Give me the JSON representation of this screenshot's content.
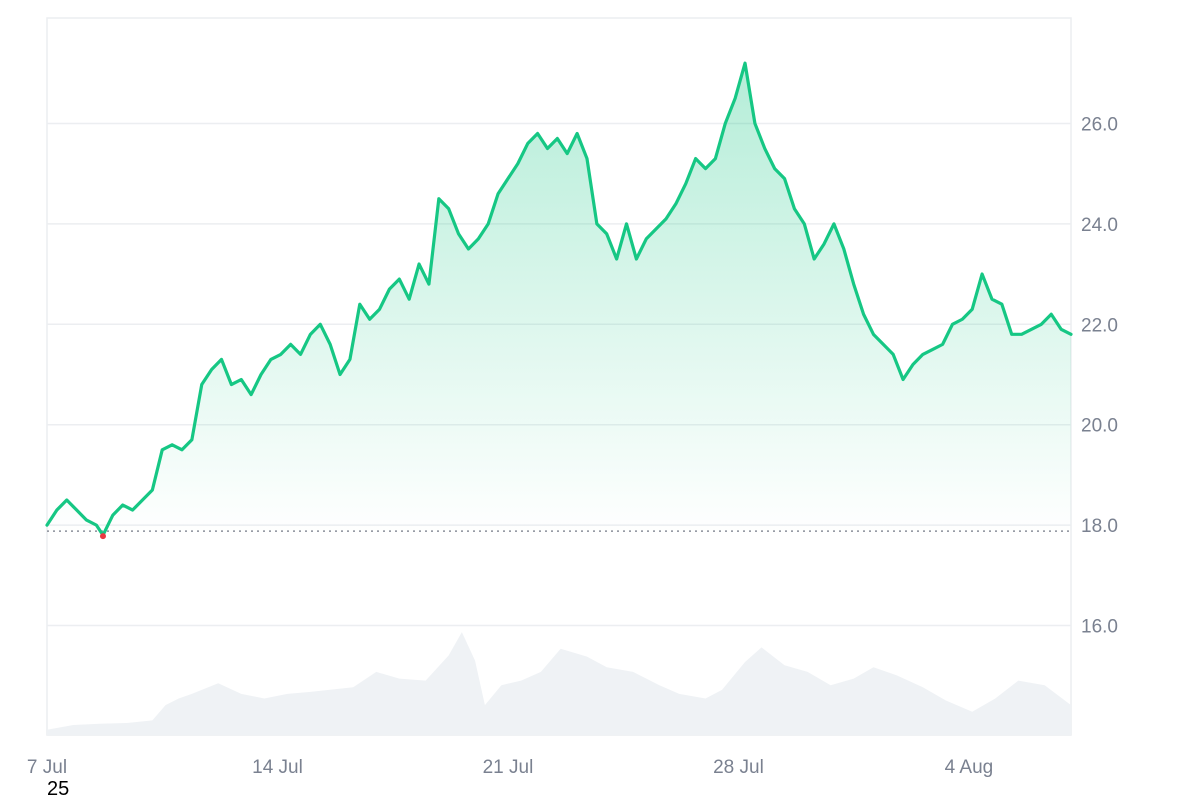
{
  "chart_data": {
    "type": "area",
    "title": "",
    "xlabel": "",
    "ylabel": "",
    "x_ticks": [
      "7 Jul",
      "14 Jul",
      "21 Jul",
      "28 Jul",
      "4 Aug"
    ],
    "x_tick_days": [
      0,
      7,
      14,
      21,
      28
    ],
    "x_range_days": [
      0,
      31.1
    ],
    "year_label": "25",
    "y_ticks": [
      "16.0",
      "18.0",
      "20.0",
      "22.0",
      "24.0",
      "26.0"
    ],
    "y_tick_values": [
      16,
      18,
      20,
      22,
      24,
      26
    ],
    "ylim": [
      13.82,
      28.1
    ],
    "baseline": 17.88,
    "grid": true,
    "legend": "none",
    "colors": {
      "up": "#16c784",
      "down": "#ea3943",
      "volume": "#eff2f5",
      "grid": "#eceef1",
      "axis_text": "#7a8190"
    },
    "series": [
      {
        "days": [
          0,
          0.3,
          0.6,
          0.9,
          1.2,
          1.5,
          1.7,
          2.0,
          2.3,
          2.6,
          2.9,
          3.2,
          3.5,
          3.8,
          4.1,
          4.4,
          4.7,
          5.0,
          5.3,
          5.6,
          5.9,
          6.2,
          6.5,
          6.8,
          7.1,
          7.4,
          7.7,
          8.0,
          8.3,
          8.6,
          8.9,
          9.2,
          9.5,
          9.8,
          10.1,
          10.4,
          10.7,
          11.0,
          11.3,
          11.6,
          11.9,
          12.2,
          12.5,
          12.8,
          13.1,
          13.4,
          13.7,
          14.0,
          14.3,
          14.6,
          14.9,
          15.2,
          15.5,
          15.8,
          16.1,
          16.4,
          16.7,
          17.0,
          17.3,
          17.6,
          17.9,
          18.2,
          18.5,
          18.8,
          19.1,
          19.4,
          19.7,
          20.0,
          20.3,
          20.6,
          20.9,
          21.2,
          21.5,
          21.8,
          22.1,
          22.4,
          22.7,
          23.0,
          23.3,
          23.6,
          23.9,
          24.2,
          24.5,
          24.8,
          25.1,
          25.4,
          25.7,
          26.0,
          26.3,
          26.6,
          26.9,
          27.2,
          27.5,
          27.8,
          28.1,
          28.4,
          28.7,
          29.0,
          29.3,
          29.6,
          29.9,
          30.2,
          30.5,
          30.8,
          31.1
        ],
        "values": [
          18.0,
          18.3,
          18.5,
          18.3,
          18.1,
          18.0,
          17.8,
          18.2,
          18.4,
          18.3,
          18.5,
          18.7,
          19.5,
          19.6,
          19.5,
          19.7,
          20.8,
          21.1,
          21.3,
          20.8,
          20.9,
          20.6,
          21.0,
          21.3,
          21.4,
          21.6,
          21.4,
          21.8,
          22.0,
          21.6,
          21.0,
          21.3,
          22.4,
          22.1,
          22.3,
          22.7,
          22.9,
          22.5,
          23.2,
          22.8,
          24.5,
          24.3,
          23.8,
          23.5,
          23.7,
          24.0,
          24.6,
          24.9,
          25.2,
          25.6,
          25.8,
          25.5,
          25.7,
          25.4,
          25.8,
          25.3,
          24.0,
          23.8,
          23.3,
          24.0,
          23.3,
          23.7,
          23.9,
          24.1,
          24.4,
          24.8,
          25.3,
          25.1,
          25.3,
          26.0,
          26.5,
          27.2,
          26.0,
          25.5,
          25.1,
          24.9,
          24.3,
          24.0,
          23.3,
          23.6,
          24.0,
          23.5,
          22.8,
          22.2,
          21.8,
          21.6,
          21.4,
          20.9,
          21.2,
          21.4,
          21.5,
          21.6,
          22.0,
          22.1,
          22.3,
          23.0,
          22.5,
          22.4,
          21.8,
          21.8,
          21.9,
          22.0,
          22.2,
          21.9,
          21.8
        ]
      }
    ],
    "volume": {
      "days": [
        0,
        0.8,
        1.6,
        2.4,
        3.2,
        3.6,
        4.0,
        4.4,
        5.2,
        5.9,
        6.6,
        7.3,
        8.0,
        9.3,
        10.0,
        10.7,
        11.5,
        12.2,
        12.6,
        13.0,
        13.3,
        13.8,
        14.4,
        15.0,
        15.6,
        16.4,
        17.0,
        17.8,
        18.6,
        19.2,
        20.0,
        20.5,
        21.2,
        21.7,
        22.4,
        23.1,
        23.8,
        24.5,
        25.1,
        25.8,
        26.6,
        27.3,
        28.1,
        28.8,
        29.5,
        30.3,
        31.1
      ],
      "values": [
        0.08,
        0.15,
        0.17,
        0.18,
        0.22,
        0.45,
        0.55,
        0.62,
        0.78,
        0.62,
        0.55,
        0.62,
        0.65,
        0.72,
        0.95,
        0.85,
        0.82,
        1.2,
        1.55,
        1.12,
        0.45,
        0.75,
        0.82,
        0.95,
        1.3,
        1.18,
        1.02,
        0.95,
        0.75,
        0.62,
        0.55,
        0.68,
        1.1,
        1.32,
        1.05,
        0.95,
        0.75,
        0.85,
        1.02,
        0.9,
        0.72,
        0.52,
        0.35,
        0.55,
        0.82,
        0.75,
        0.45
      ]
    }
  }
}
